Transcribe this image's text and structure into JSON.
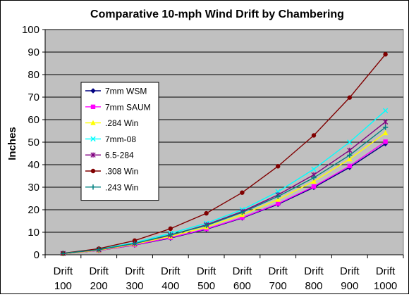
{
  "chart_data": {
    "type": "line",
    "title": "Comparative 10-mph Wind Drift by Chambering",
    "xlabel": "",
    "ylabel": "Inches",
    "ylim": [
      0,
      100
    ],
    "yticks": [
      0,
      10,
      20,
      30,
      40,
      50,
      60,
      70,
      80,
      90,
      100
    ],
    "grid": true,
    "legend_position": "left-middle",
    "plot_background": "#c0c0c0",
    "categories": [
      [
        "Drift",
        "100"
      ],
      [
        "Drift",
        "200"
      ],
      [
        "Drift",
        "300"
      ],
      [
        "Drift",
        "400"
      ],
      [
        "Drift",
        "500"
      ],
      [
        "Drift",
        "600"
      ],
      [
        "Drift",
        "700"
      ],
      [
        "Drift",
        "800"
      ],
      [
        "Drift",
        "900"
      ],
      [
        "Drift",
        "1000"
      ]
    ],
    "series": [
      {
        "name": "7mm WSM",
        "color": "#000080",
        "marker": "diamond",
        "values": [
          0.5,
          1.9,
          4.3,
          7.4,
          11.3,
          16.3,
          22.4,
          29.9,
          38.8,
          49.3
        ]
      },
      {
        "name": "7mm SAUM",
        "color": "#ff00ff",
        "marker": "square",
        "values": [
          0.5,
          1.9,
          4.4,
          7.6,
          11.5,
          16.5,
          22.7,
          30.3,
          39.4,
          50.2
        ]
      },
      {
        "name": ".284 Win",
        "color": "#ffff00",
        "marker": "triangle",
        "values": [
          0.5,
          2.0,
          4.7,
          8.2,
          12.3,
          17.8,
          24.5,
          32.6,
          42.5,
          54.1
        ]
      },
      {
        "name": "7mm-08",
        "color": "#00ffff",
        "marker": "x",
        "values": [
          0.6,
          2.4,
          5.4,
          9.5,
          14.0,
          20.0,
          28.0,
          38.0,
          50.0,
          64.0
        ]
      },
      {
        "name": "6.5-284",
        "color": "#800080",
        "marker": "star",
        "values": [
          0.6,
          2.2,
          5.0,
          8.7,
          13.3,
          19.2,
          26.6,
          35.5,
          46.4,
          59.0
        ]
      },
      {
        "name": ".308 Win",
        "color": "#800000",
        "marker": "circle",
        "values": [
          0.7,
          2.7,
          6.3,
          11.6,
          18.4,
          27.6,
          39.3,
          53.0,
          69.8,
          89.0
        ]
      },
      {
        "name": ".243 Win",
        "color": "#008080",
        "marker": "plus",
        "values": [
          0.6,
          2.3,
          5.0,
          8.9,
          13.0,
          18.8,
          25.9,
          34.2,
          44.2,
          56.6
        ]
      }
    ]
  }
}
